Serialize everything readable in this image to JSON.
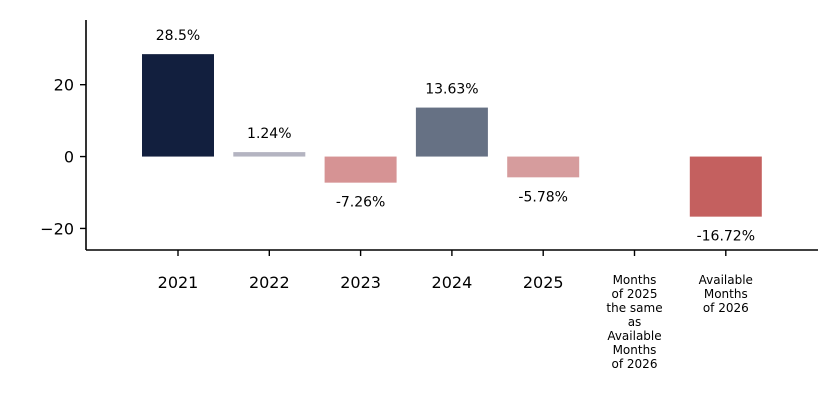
{
  "chart_data": {
    "type": "bar",
    "categories": [
      "2021",
      "2022",
      "2023",
      "2024",
      "2025",
      "Months\nof 2025\nthe same\nas\nAvailable\nMonths\nof 2026",
      "Available\nMonths\nof 2026"
    ],
    "values": [
      28.5,
      1.24,
      -7.26,
      13.63,
      -5.78,
      null,
      -16.72
    ],
    "data_labels": [
      "28.5%",
      "1.24%",
      "-7.26%",
      "13.63%",
      "-5.78%",
      "",
      "-16.72%"
    ],
    "colors": [
      "#121f3e",
      "#b4b4c1",
      "#d69394",
      "#667184",
      "#d69c9d",
      "#ffffff",
      "#c4605f"
    ],
    "yticks": [
      -20,
      0,
      20
    ],
    "ytick_labels": [
      "−20",
      "0",
      "20"
    ],
    "ylim": [
      -26,
      38
    ],
    "grid": false,
    "title": "",
    "xlabel": "",
    "ylabel": ""
  }
}
